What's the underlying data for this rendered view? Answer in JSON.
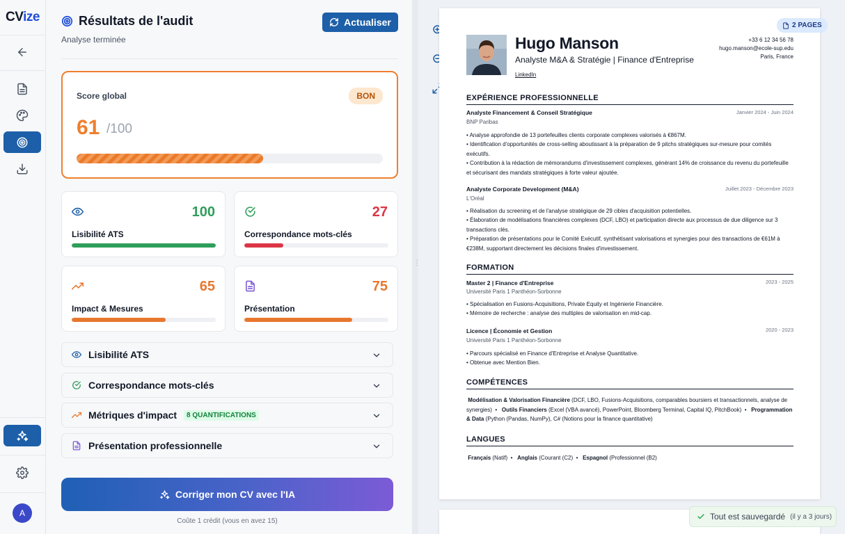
{
  "app": {
    "brand_main": "CV",
    "brand_accent": "ize",
    "avatar_initial": "A"
  },
  "rail": {
    "items": [
      {
        "name": "back",
        "icon": "arrow-left-icon"
      },
      {
        "name": "document",
        "icon": "document-icon"
      },
      {
        "name": "design",
        "icon": "palette-icon"
      },
      {
        "name": "audit",
        "icon": "target-icon",
        "active": true
      },
      {
        "name": "download",
        "icon": "download-icon"
      },
      {
        "name": "ai",
        "icon": "sparkles-icon",
        "active": true
      },
      {
        "name": "settings",
        "icon": "gear-icon"
      }
    ]
  },
  "audit": {
    "title": "Résultats de l'audit",
    "subtitle": "Analyse terminée",
    "refresh_label": "Actualiser",
    "score": {
      "label": "Score global",
      "value": "61",
      "max": "/100",
      "badge": "BON",
      "progress": 0.61
    },
    "metrics": [
      {
        "label": "Lisibilité ATS",
        "value": "100",
        "progress": 1.0,
        "color": "#2f9e5a",
        "icon": "eye-icon"
      },
      {
        "label": "Correspondance mots-clés",
        "value": "27",
        "progress": 0.27,
        "color": "#dc3545",
        "icon": "check-circle-icon"
      },
      {
        "label": "Impact & Mesures",
        "value": "65",
        "progress": 0.65,
        "color": "#e8772e",
        "icon": "trend-up-icon"
      },
      {
        "label": "Présentation",
        "value": "75",
        "progress": 0.75,
        "color": "#e8772e",
        "icon": "document-icon"
      }
    ],
    "sections": [
      {
        "label": "Lisibilité ATS",
        "icon": "eye-icon"
      },
      {
        "label": "Correspondance mots-clés",
        "icon": "check-circle-icon"
      },
      {
        "label": "Métriques d'impact",
        "icon": "trend-up-icon",
        "badge": "8 QUANTIFICATIONS"
      },
      {
        "label": "Présentation professionnelle",
        "icon": "document-icon"
      }
    ],
    "ai_button": "Corriger mon CV avec l'IA",
    "credit_note": "Coûte 1 crédit (vous en avez 15)"
  },
  "preview": {
    "pages_badge": "2 PAGES",
    "cv": {
      "name": "Hugo Manson",
      "role": "Analyste M&A & Stratégie | Finance d'Entreprise",
      "link": "LinkedIn",
      "phone": "+33 6 12 34 56 78",
      "email": "hugo.manson@ecole-sup.edu",
      "location": "Paris, France",
      "sections": {
        "experience": "EXPÉRIENCE PROFESSIONNELLE",
        "education": "FORMATION",
        "skills": "COMPÉTENCES",
        "languages": "LANGUES"
      },
      "experience": [
        {
          "title": "Analyste Financement & Conseil Stratégique",
          "org": "BNP Paribas",
          "date": "Janvier 2024 - Juin 2024",
          "bullets": [
            "• Analyse approfondie de 13 portefeuilles clients corporate complexes valorisés à €867M.",
            "• Identification d'opportunités de cross-selling aboutissant à la préparation de 9 pitchs stratégiques sur-mesure pour comités exécutifs.",
            "• Contribution à la rédaction de mémorandums d'investissement complexes, générant 14% de croissance du revenu du portefeuille et sécurisant des mandats stratégiques à forte valeur ajoutée."
          ]
        },
        {
          "title": "Analyste Corporate Development (M&A)",
          "org": "L'Oréal",
          "date": "Juillet 2023 - Décembre 2023",
          "bullets": [
            "• Réalisation du screening et de l'analyse stratégique de 29 cibles d'acquisition potentielles.",
            "• Élaboration de modélisations financières complexes (DCF, LBO) et participation directe aux processus de due diligence sur 3 transactions clés.",
            "• Préparation de présentations pour le Comité Exécutif, synthétisant valorisations et synergies pour des transactions de €61M à €238M, supportant directement les décisions finales d'investissement."
          ]
        }
      ],
      "education": [
        {
          "title": "Master 2 | Finance d'Entreprise",
          "org": "Université Paris 1 Panthéon-Sorbonne",
          "date": "2023 - 2025",
          "bullets": [
            "• Spécialisation en Fusions-Acquisitions, Private Equity et Ingénierie Financière.",
            "• Mémoire de recherche : analyse des multiples de valorisation en mid-cap."
          ]
        },
        {
          "title": "Licence | Économie et Gestion",
          "org": "Université Paris 1 Panthéon-Sorbonne",
          "date": "2020 - 2023",
          "bullets": [
            "• Parcours spécialisé en Finance d'Entreprise et Analyse Quantitative.",
            "• Obtenue avec Mention Bien."
          ]
        }
      ],
      "skills": [
        {
          "name": "Modélisation & Valorisation Financière",
          "detail": "(DCF, LBO, Fusions-Acquisitions, comparables boursiers et transactionnels, analyse de synergies)"
        },
        {
          "name": "Outils Financiers",
          "detail": "(Excel (VBA avancé), PowerPoint, Bloomberg Terminal, Capital IQ, PitchBook)"
        },
        {
          "name": "Programmation & Data",
          "detail": "(Python (Pandas, NumPy), C# (Notions pour la finance quantitative)"
        }
      ],
      "languages": [
        {
          "name": "Français",
          "level": "(Natif)"
        },
        {
          "name": "Anglais",
          "level": "(Courant (C2)"
        },
        {
          "name": "Espagnol",
          "level": "(Professionnel (B2)"
        }
      ],
      "separator": "•"
    }
  },
  "toast": {
    "message": "Tout est sauvegardé",
    "time": "(il y a 3 jours)"
  }
}
